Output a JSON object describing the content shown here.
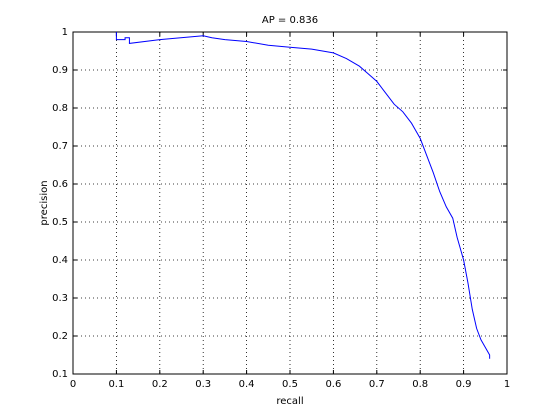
{
  "chart_data": {
    "type": "line",
    "title": "AP = 0.836",
    "x_label": "recall",
    "y_label": "precision",
    "x": [
      0.1,
      0.1,
      0.12,
      0.12,
      0.13,
      0.13,
      0.2,
      0.3,
      0.32,
      0.35,
      0.4,
      0.45,
      0.5,
      0.55,
      0.6,
      0.63,
      0.66,
      0.68,
      0.7,
      0.72,
      0.74,
      0.76,
      0.78,
      0.8,
      0.82,
      0.83,
      0.845,
      0.86,
      0.875,
      0.885,
      0.9,
      0.91,
      0.92,
      0.93,
      0.94,
      0.95,
      0.96,
      0.96
    ],
    "values": [
      1,
      0.98,
      0.98,
      0.985,
      0.985,
      0.97,
      0.98,
      0.99,
      0.985,
      0.98,
      0.975,
      0.965,
      0.96,
      0.955,
      0.945,
      0.93,
      0.91,
      0.89,
      0.87,
      0.84,
      0.81,
      0.79,
      0.76,
      0.72,
      0.66,
      0.63,
      0.58,
      0.54,
      0.51,
      0.46,
      0.4,
      0.34,
      0.27,
      0.22,
      0.19,
      0.17,
      0.15,
      0.14
    ],
    "color": "#0000ff",
    "xlim": [
      0,
      1
    ],
    "xticks": [
      0,
      0.1,
      0.2,
      0.3,
      0.4,
      0.5,
      0.6,
      0.7,
      0.8,
      0.9,
      1
    ],
    "ylim": [
      0.1,
      1
    ],
    "yticks": [
      0.1,
      0.2,
      0.3,
      0.4,
      0.5,
      0.6,
      0.7,
      0.8,
      0.9,
      1
    ],
    "grid": true
  }
}
